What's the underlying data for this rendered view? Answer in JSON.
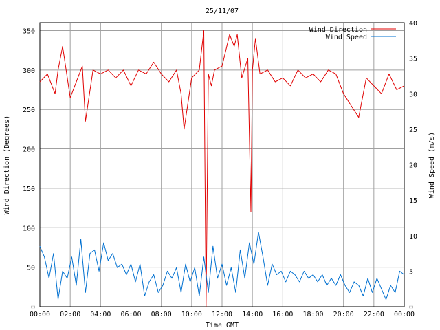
{
  "chart_data": {
    "type": "line",
    "title": "25/11/07",
    "xlabel": "Time GMT",
    "ylabel_left": "Wind Direction (Degrees)",
    "ylabel_right": "Wind Speed (m/s)",
    "x_ticks": [
      "00:00",
      "02:00",
      "04:00",
      "06:00",
      "08:00",
      "10:00",
      "12:00",
      "14:00",
      "16:00",
      "18:00",
      "20:00",
      "22:00",
      "00:00"
    ],
    "x_range_hours": [
      0,
      24
    ],
    "y_left": {
      "ylim": [
        0,
        360
      ],
      "ticks": [
        "0",
        "50",
        "100",
        "150",
        "200",
        "250",
        "300",
        "350"
      ]
    },
    "y_right": {
      "ylim": [
        0,
        40
      ],
      "ticks": [
        "0",
        "5",
        "10",
        "15",
        "20",
        "25",
        "30",
        "35",
        "40"
      ]
    },
    "grid": true,
    "legend_position": "top-right",
    "series": [
      {
        "name": "Wind Direction",
        "axis": "left",
        "color": "#e00000",
        "x": [
          0.0,
          0.5,
          1.0,
          1.2,
          1.5,
          2.0,
          2.5,
          2.8,
          3.0,
          3.5,
          4.0,
          4.5,
          5.0,
          5.5,
          6.0,
          6.5,
          7.0,
          7.5,
          8.0,
          8.5,
          9.0,
          9.3,
          9.5,
          10.0,
          10.5,
          10.8,
          10.95,
          11.1,
          11.3,
          11.5,
          12.0,
          12.5,
          12.8,
          13.0,
          13.3,
          13.7,
          13.9,
          14.0,
          14.2,
          14.5,
          15.0,
          15.5,
          16.0,
          16.5,
          17.0,
          17.5,
          18.0,
          18.5,
          19.0,
          19.5,
          20.0,
          20.5,
          21.0,
          21.5,
          22.0,
          22.5,
          23.0,
          23.5,
          24.0
        ],
        "values": [
          285,
          295,
          270,
          300,
          330,
          265,
          290,
          305,
          235,
          300,
          295,
          300,
          290,
          300,
          280,
          300,
          295,
          310,
          295,
          285,
          300,
          270,
          225,
          290,
          300,
          350,
          0,
          295,
          280,
          300,
          305,
          345,
          330,
          345,
          290,
          315,
          120,
          300,
          340,
          295,
          300,
          285,
          290,
          280,
          300,
          290,
          295,
          285,
          300,
          295,
          270,
          255,
          240,
          290,
          280,
          270,
          295,
          275,
          280
        ]
      },
      {
        "name": "Wind Speed",
        "axis": "right",
        "color": "#0070d0",
        "x": [
          0.0,
          0.3,
          0.6,
          0.9,
          1.2,
          1.5,
          1.8,
          2.1,
          2.4,
          2.7,
          3.0,
          3.3,
          3.6,
          3.9,
          4.2,
          4.5,
          4.8,
          5.1,
          5.4,
          5.7,
          6.0,
          6.3,
          6.6,
          6.9,
          7.2,
          7.5,
          7.8,
          8.1,
          8.4,
          8.7,
          9.0,
          9.3,
          9.6,
          9.9,
          10.2,
          10.5,
          10.8,
          11.1,
          11.4,
          11.7,
          12.0,
          12.3,
          12.6,
          12.9,
          13.2,
          13.5,
          13.8,
          14.1,
          14.4,
          14.7,
          15.0,
          15.3,
          15.6,
          15.9,
          16.2,
          16.5,
          16.8,
          17.1,
          17.4,
          17.7,
          18.0,
          18.3,
          18.6,
          18.9,
          19.2,
          19.5,
          19.8,
          20.1,
          20.4,
          20.7,
          21.0,
          21.3,
          21.6,
          21.9,
          22.2,
          22.5,
          22.8,
          23.1,
          23.4,
          23.7,
          24.0
        ],
        "values": [
          8.5,
          7,
          4,
          7.5,
          1,
          5,
          4,
          7,
          3,
          9.5,
          2,
          7.5,
          8,
          5,
          9,
          6.5,
          7.5,
          5.5,
          6,
          4.5,
          6,
          3.5,
          6,
          1.5,
          3.5,
          4.5,
          2,
          3,
          5,
          4,
          5.5,
          2,
          6,
          3.5,
          5.5,
          1.5,
          7,
          2,
          8.5,
          4,
          6,
          3,
          5.5,
          2,
          8,
          4,
          9,
          6,
          10.5,
          7,
          3,
          6,
          4.5,
          5,
          3.5,
          5,
          4.5,
          3.5,
          5,
          4,
          4.5,
          3.5,
          4.5,
          3,
          4,
          3,
          4.5,
          3,
          2,
          3.5,
          3,
          1.5,
          4,
          2,
          4,
          2.5,
          1,
          3,
          2,
          5,
          4.5
        ]
      }
    ]
  }
}
